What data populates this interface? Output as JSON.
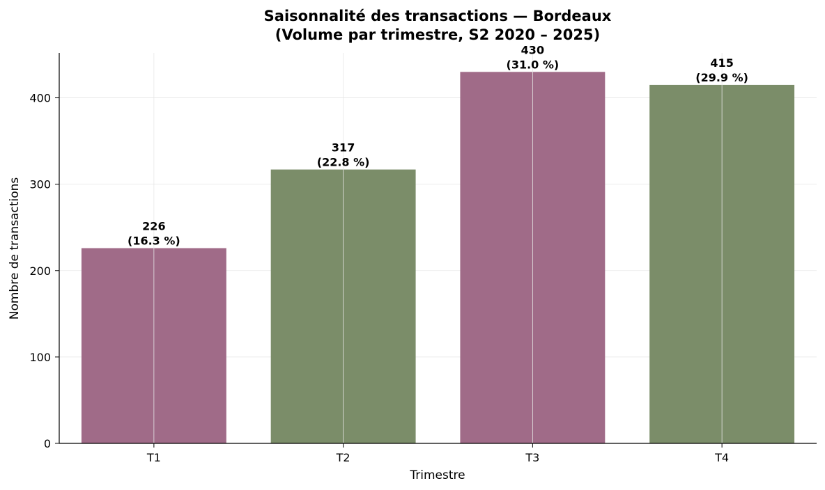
{
  "chart_data": {
    "type": "bar",
    "title_line1": "Saisonnalité des transactions — Bordeaux",
    "title_line2": "(Volume par trimestre, S2 2020 – 2025)",
    "xlabel": "Trimestre",
    "ylabel": "Nombre de transactions",
    "categories": [
      "T1",
      "T2",
      "T3",
      "T4"
    ],
    "values": [
      226,
      317,
      430,
      415
    ],
    "percent_labels": [
      "(16.3 %)",
      "(22.8 %)",
      "(31.0 %)",
      "(29.9 %)"
    ],
    "value_labels": [
      "226",
      "317",
      "430",
      "415"
    ],
    "bar_colors": [
      "#a06b88",
      "#7b8d69",
      "#a06b88",
      "#7b8d69"
    ],
    "yticks": [
      0,
      100,
      200,
      300,
      400
    ],
    "ylim": [
      0,
      452
    ],
    "grid": true
  }
}
